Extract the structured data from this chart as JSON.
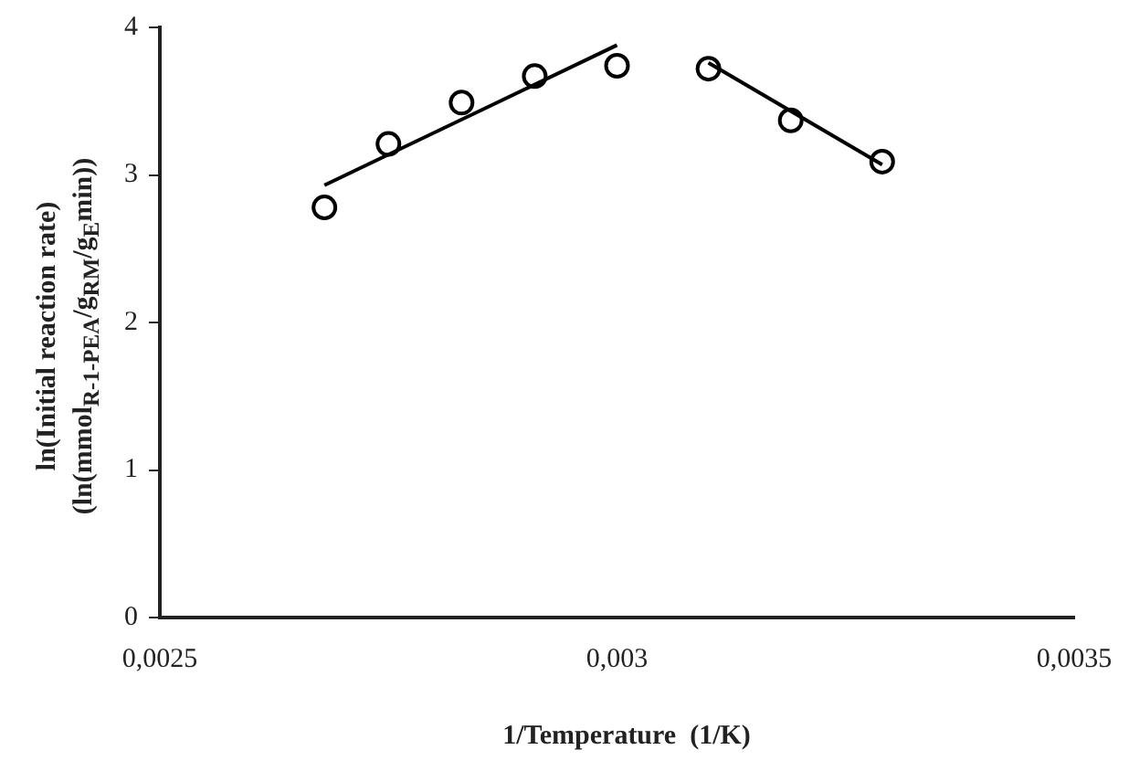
{
  "chart_data": {
    "type": "scatter",
    "xlabel": "1/Temperature  (1/K)",
    "ylabel": "ln(Initial reaction rate)\n(ln(mmol$_{R-1-PEA}$/g$_{RM}$/g$_{E}$min))",
    "series": [
      {
        "color": "#000000",
        "marker": "circle",
        "x": [
          0.00268,
          0.00275,
          0.00283,
          0.00291,
          0.003,
          0.0031,
          0.00319,
          0.00329
        ],
        "values": [
          2.78,
          3.21,
          3.49,
          3.67,
          3.74,
          3.72,
          3.37,
          3.09
        ]
      },
      {
        "type": "line",
        "color": "#000000",
        "marker": "none",
        "x": [
          0.00268,
          0.003
        ],
        "values": [
          2.93,
          3.88
        ]
      },
      {
        "type": "line",
        "color": "#000000",
        "marker": "none",
        "x": [
          0.0031,
          0.00329
        ],
        "values": [
          3.76,
          3.07
        ]
      }
    ],
    "xlim": [
      0.0025,
      0.0035
    ],
    "xticks": [
      {
        "value": 0.0025,
        "label": "0,0025"
      },
      {
        "value": 0.003,
        "label": "0,003"
      },
      {
        "value": 0.0035,
        "label": "0,0035"
      }
    ],
    "ylim": [
      0,
      4
    ],
    "yticks": [
      0,
      1,
      2,
      3,
      4
    ],
    "grid": false,
    "legend": false
  }
}
